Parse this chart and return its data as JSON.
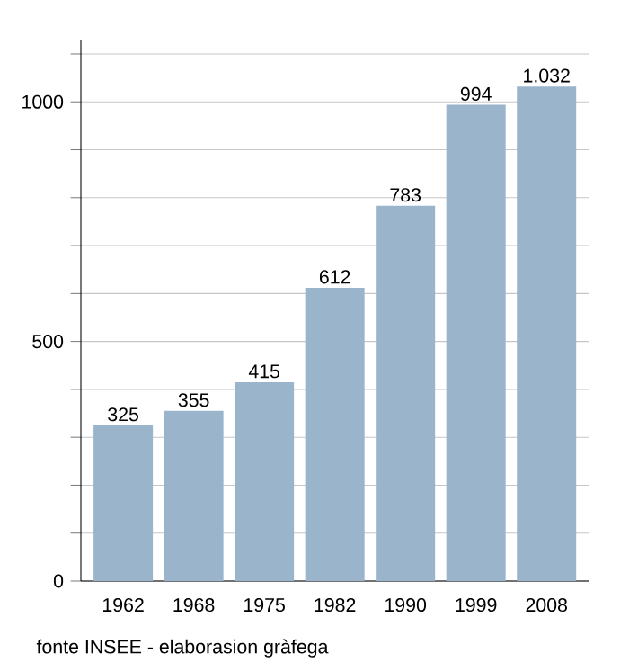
{
  "chart_data": {
    "type": "bar",
    "categories": [
      "1962",
      "1968",
      "1975",
      "1982",
      "1990",
      "1999",
      "2008"
    ],
    "values": [
      325,
      355,
      415,
      612,
      783,
      994,
      1032
    ],
    "value_labels": [
      "325",
      "355",
      "415",
      "612",
      "783",
      "994",
      "1.032"
    ],
    "color": "#9ab4cc",
    "ylim": [
      0,
      1130
    ],
    "yticks": [
      0,
      {
        "value": 100,
        "label": null
      },
      {
        "value": 200,
        "label": null
      },
      {
        "value": 300,
        "label": null
      },
      {
        "value": 400,
        "label": null
      },
      500,
      {
        "value": 600,
        "label": null
      },
      {
        "value": 700,
        "label": null
      },
      {
        "value": 800,
        "label": null
      },
      {
        "value": 900,
        "label": null
      },
      1000,
      {
        "value": 1100,
        "label": null
      }
    ],
    "grid": "y",
    "annotations": [
      "fonte INSEE - elaborasion gràfega"
    ]
  }
}
